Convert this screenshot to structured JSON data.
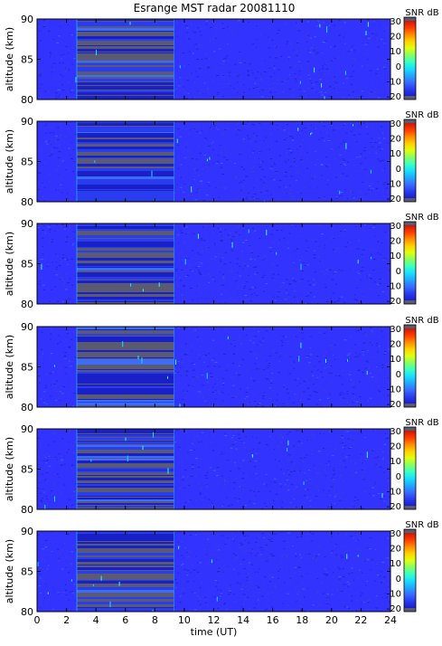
{
  "title": "Esrange MST radar 20081110",
  "colors": {
    "background": "#3333ff",
    "colormap": [
      "#5a5a70",
      "#1a20c8",
      "#2a3cf0",
      "#3a6cff",
      "#22a8ff",
      "#18e0ff",
      "#3cffc0",
      "#88ff60",
      "#e0ff10",
      "#ffd000",
      "#ff8a00",
      "#ff3a00",
      "#c81808"
    ]
  },
  "chart_data": [
    {
      "type": "heatmap",
      "panel": 1,
      "xlabel": "",
      "ylabel": "altitude (km)",
      "xlim": [
        0,
        24
      ],
      "ylim": [
        80,
        90
      ],
      "yticks": [
        "80",
        "85",
        "90"
      ],
      "colorbar": {
        "label": "SNR dB",
        "range": [
          -20,
          30
        ],
        "ticks": [
          "30",
          "20",
          "10",
          "0",
          "-10",
          "-20"
        ]
      },
      "strong_echo_region": {
        "time_start": 2.7,
        "time_end": 9.3,
        "unit": "UT"
      }
    },
    {
      "type": "heatmap",
      "panel": 2,
      "xlabel": "",
      "ylabel": "altitude (km)",
      "xlim": [
        0,
        24
      ],
      "ylim": [
        80,
        90
      ],
      "yticks": [
        "80",
        "85",
        "90"
      ],
      "colorbar": {
        "label": "SNR dB",
        "range": [
          -20,
          30
        ],
        "ticks": [
          "30",
          "20",
          "10",
          "0",
          "-10",
          "-20"
        ]
      },
      "strong_echo_region": {
        "time_start": 2.7,
        "time_end": 9.3,
        "unit": "UT"
      }
    },
    {
      "type": "heatmap",
      "panel": 3,
      "xlabel": "",
      "ylabel": "altitude (km)",
      "xlim": [
        0,
        24
      ],
      "ylim": [
        80,
        90
      ],
      "yticks": [
        "80",
        "85",
        "90"
      ],
      "colorbar": {
        "label": "SNR dB",
        "range": [
          -20,
          30
        ],
        "ticks": [
          "30",
          "20",
          "10",
          "0",
          "-10",
          "-20"
        ]
      },
      "strong_echo_region": {
        "time_start": 2.7,
        "time_end": 9.3,
        "unit": "UT"
      }
    },
    {
      "type": "heatmap",
      "panel": 4,
      "xlabel": "",
      "ylabel": "altitude (km)",
      "xlim": [
        0,
        24
      ],
      "ylim": [
        80,
        90
      ],
      "yticks": [
        "80",
        "85",
        "90"
      ],
      "colorbar": {
        "label": "SNR dB",
        "range": [
          -20,
          30
        ],
        "ticks": [
          "30",
          "20",
          "10",
          "0",
          "-10",
          "-20"
        ]
      },
      "strong_echo_region": {
        "time_start": 2.7,
        "time_end": 9.3,
        "unit": "UT"
      }
    },
    {
      "type": "heatmap",
      "panel": 5,
      "xlabel": "",
      "ylabel": "altitude (km)",
      "xlim": [
        0,
        24
      ],
      "ylim": [
        80,
        90
      ],
      "yticks": [
        "80",
        "85",
        "90"
      ],
      "colorbar": {
        "label": "SNR dB",
        "range": [
          -20,
          30
        ],
        "ticks": [
          "30",
          "20",
          "10",
          "0",
          "-10",
          "-20"
        ]
      },
      "strong_echo_region": {
        "time_start": 2.7,
        "time_end": 9.3,
        "unit": "UT"
      }
    },
    {
      "type": "heatmap",
      "panel": 6,
      "xlabel": "time (UT)",
      "ylabel": "altitude (km)",
      "xlim": [
        0,
        24
      ],
      "ylim": [
        80,
        90
      ],
      "yticks": [
        "80",
        "85",
        "90"
      ],
      "xticks": [
        "0",
        "2",
        "4",
        "6",
        "8",
        "10",
        "12",
        "14",
        "16",
        "18",
        "20",
        "22",
        "24"
      ],
      "colorbar": {
        "label": "SNR dB",
        "range": [
          -20,
          30
        ],
        "ticks": [
          "30",
          "20",
          "10",
          "0",
          "-10",
          "-20"
        ]
      },
      "strong_echo_region": {
        "time_start": 2.7,
        "time_end": 9.3,
        "unit": "UT"
      }
    }
  ]
}
